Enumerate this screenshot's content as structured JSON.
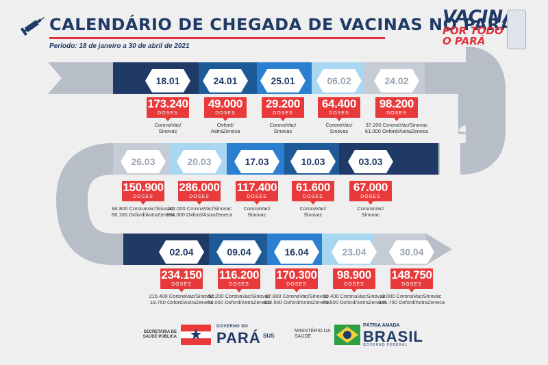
{
  "title": "CALENDÁRIO DE CHEGADA DE VACINAS NO PARÁ",
  "period": "Período: 18 de janeiro a 30 de abril de 2021",
  "logo": {
    "line1": "VACINA",
    "line2": "POR TODO",
    "line3": "O PARÁ"
  },
  "dose_label": "DOSES",
  "colors": {
    "navy": "#1f3a66",
    "mid_blue": "#1e6ec4",
    "light_blue": "#a9d6f1",
    "gray": "#aab4bf",
    "red": "#e83a3a"
  },
  "rows": [
    {
      "items": [
        {
          "date": "18.01",
          "doses": "173.240",
          "brand": [
            "CoronaVac/",
            "Sinovac"
          ]
        },
        {
          "date": "24.01",
          "doses": "49.000",
          "brand": [
            "Oxford/",
            "AstraZeneca"
          ]
        },
        {
          "date": "25.01",
          "doses": "29.200",
          "brand": [
            "CoronaVac/",
            "Sinovac"
          ]
        },
        {
          "date": "06.02",
          "doses": "64.400",
          "brand": [
            "CoronaVac/",
            "Sinovac"
          ]
        },
        {
          "date": "24.02",
          "doses": "98.200",
          "brand": [
            "37.200 CoronaVac/Sinovac",
            "61.000 Oxford/AstraZeneca"
          ]
        }
      ]
    },
    {
      "items": [
        {
          "date": "26.03",
          "doses": "150.900",
          "brand": [
            "84.800 CoronaVac/Sinovac",
            "66.100 Oxford/AstraZeneca"
          ]
        },
        {
          "date": "20.03",
          "doses": "286.000",
          "brand": [
            "102.000 CoronaVac/Sinovac",
            "184.000 Oxford/AstraZeneca"
          ]
        },
        {
          "date": "17.03",
          "doses": "117.400",
          "brand": [
            "CoronaVac/",
            "Sinovac"
          ]
        },
        {
          "date": "10.03",
          "doses": "61.600",
          "brand": [
            "CoronaVac/",
            "Sinovac"
          ]
        },
        {
          "date": "03.03",
          "doses": "67.000",
          "brand": [
            "CoronaVac/",
            "Sinovac"
          ]
        }
      ]
    },
    {
      "items": [
        {
          "date": "02.04",
          "doses": "234.150",
          "brand": [
            "215.400 CoronaVac/Sinovac",
            "18.750 Oxford/AstraZeneca"
          ]
        },
        {
          "date": "09.04",
          "doses": "116.200",
          "brand": [
            "52.200 CoronaVac/Sinovac",
            "64.000 Oxford/AstraZeneca"
          ]
        },
        {
          "date": "16.04",
          "doses": "170.300",
          "brand": [
            "67.800 CoronaVac/Sinovac",
            "102.500 Oxford/AstraZeneca"
          ]
        },
        {
          "date": "23.04",
          "doses": "98.900",
          "brand": [
            "19.400 CoronaVac/Sinovac",
            "79.500 Oxford/AstraZeneca"
          ]
        },
        {
          "date": "30.04",
          "doses": "148.750",
          "brand": [
            "3.000 CoronaVac/Sinovac",
            "145.750 Oxford/AstraZeneca"
          ]
        }
      ]
    }
  ],
  "footer": {
    "secretaria": [
      "SECRETARIA DE",
      "SAÚDE PÚBLICA"
    ],
    "governo": "GOVERNO DO",
    "para": "PARÁ",
    "sus": "SUS",
    "ministerio": [
      "MINISTÉRIO DA",
      "SAÚDE"
    ],
    "patria": "PÁTRIA AMADA",
    "brasil": "BRASIL",
    "federal": "GOVERNO FEDERAL"
  }
}
